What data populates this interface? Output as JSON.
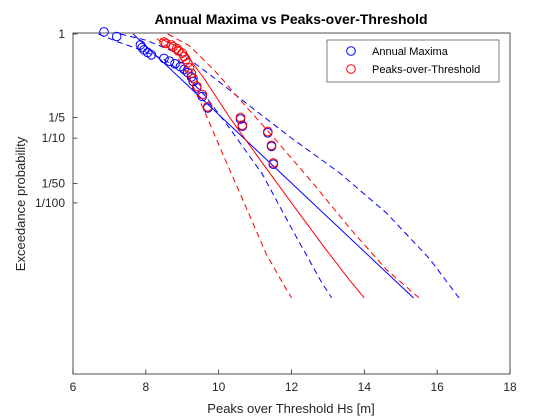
{
  "chart_data": {
    "type": "scatter",
    "title": "Annual Maxima vs Peaks-over-Threshold",
    "xlabel": "Peaks over Threshold Hs [m]",
    "ylabel": "Exceedance probability",
    "xlim": [
      6,
      18
    ],
    "y_scale": "reduced-gumbel",
    "y_ticks": [
      {
        "label": "1",
        "p": 0.99
      },
      {
        "label": "1/5",
        "p": 0.2
      },
      {
        "label": "1/10",
        "p": 0.1
      },
      {
        "label": "1/50",
        "p": 0.02
      },
      {
        "label": "1/100",
        "p": 0.01
      }
    ],
    "x_ticks": [
      {
        "label": "6",
        "v": 6
      },
      {
        "label": "8",
        "v": 8
      },
      {
        "label": "10",
        "v": 10
      },
      {
        "label": "12",
        "v": 12
      },
      {
        "label": "14",
        "v": 14
      },
      {
        "label": "16",
        "v": 16
      },
      {
        "label": "18",
        "v": 18
      }
    ],
    "grid": false,
    "legend_position": "top-right",
    "series": [
      {
        "name": "Annual Maxima",
        "color": "#0000ff",
        "points": [
          {
            "x": 6.85,
            "p": 0.993
          },
          {
            "x": 7.2,
            "p": 0.985
          },
          {
            "x": 7.85,
            "p": 0.955
          },
          {
            "x": 7.9,
            "p": 0.94
          },
          {
            "x": 7.95,
            "p": 0.925
          },
          {
            "x": 8.05,
            "p": 0.905
          },
          {
            "x": 8.15,
            "p": 0.885
          },
          {
            "x": 8.5,
            "p": 0.85
          },
          {
            "x": 8.65,
            "p": 0.82
          },
          {
            "x": 8.8,
            "p": 0.79
          },
          {
            "x": 8.95,
            "p": 0.755
          },
          {
            "x": 9.05,
            "p": 0.72
          },
          {
            "x": 9.15,
            "p": 0.68
          },
          {
            "x": 9.25,
            "p": 0.62
          },
          {
            "x": 9.3,
            "p": 0.56
          },
          {
            "x": 9.4,
            "p": 0.48
          },
          {
            "x": 9.55,
            "p": 0.38
          },
          {
            "x": 9.7,
            "p": 0.27
          },
          {
            "x": 10.6,
            "p": 0.19
          },
          {
            "x": 10.65,
            "p": 0.15
          },
          {
            "x": 11.35,
            "p": 0.12
          },
          {
            "x": 11.45,
            "p": 0.075
          },
          {
            "x": 11.5,
            "p": 0.04
          }
        ],
        "fit_line": {
          "style": "solid",
          "x": [
            7.65,
            15.35
          ],
          "p": [
            0.99,
            0.00032
          ]
        },
        "ci_lower": {
          "style": "dashed",
          "x": [
            6.7,
            7.2,
            7.8,
            8.5,
            9.0,
            9.6,
            10.3,
            11.2,
            12.0,
            12.8,
            13.1
          ],
          "p": [
            0.99,
            0.97,
            0.93,
            0.84,
            0.68,
            0.4,
            0.14,
            0.028,
            0.004,
            0.0006,
            0.00032
          ]
        },
        "ci_upper": {
          "style": "dashed",
          "x": [
            7.3,
            8.0,
            8.6,
            9.2,
            9.9,
            10.8,
            12.0,
            13.3,
            14.6,
            15.8,
            16.6
          ],
          "p": [
            0.99,
            0.975,
            0.93,
            0.84,
            0.6,
            0.3,
            0.1,
            0.03,
            0.007,
            0.0013,
            0.00032
          ]
        }
      },
      {
        "name": "Peaks-over-Threshold",
        "color": "#ff0000",
        "points": [
          {
            "x": 8.5,
            "p": 0.968
          },
          {
            "x": 8.55,
            "p": 0.962
          },
          {
            "x": 8.7,
            "p": 0.955
          },
          {
            "x": 8.75,
            "p": 0.945
          },
          {
            "x": 8.85,
            "p": 0.935
          },
          {
            "x": 8.9,
            "p": 0.92
          },
          {
            "x": 9.0,
            "p": 0.9
          },
          {
            "x": 9.05,
            "p": 0.87
          },
          {
            "x": 9.1,
            "p": 0.84
          },
          {
            "x": 9.15,
            "p": 0.8
          },
          {
            "x": 9.2,
            "p": 0.74
          },
          {
            "x": 9.25,
            "p": 0.67
          },
          {
            "x": 9.3,
            "p": 0.6
          },
          {
            "x": 9.4,
            "p": 0.5
          },
          {
            "x": 9.55,
            "p": 0.4
          },
          {
            "x": 9.7,
            "p": 0.28
          },
          {
            "x": 10.6,
            "p": 0.2
          },
          {
            "x": 10.65,
            "p": 0.155
          },
          {
            "x": 11.35,
            "p": 0.125
          },
          {
            "x": 11.45,
            "p": 0.078
          },
          {
            "x": 11.5,
            "p": 0.042
          }
        ],
        "fit_line": {
          "style": "solid",
          "x": [
            8.4,
            9.0,
            9.6,
            10.3,
            11.1,
            12.0,
            12.9,
            13.6,
            14.0
          ],
          "p": [
            0.98,
            0.93,
            0.6,
            0.2,
            0.05,
            0.01,
            0.002,
            0.0006,
            0.00032
          ]
        },
        "ci_lower": {
          "style": "dashed",
          "x": [
            8.3,
            8.8,
            9.2,
            9.6,
            10.1,
            10.7,
            11.3,
            11.8,
            12.0
          ],
          "p": [
            0.98,
            0.9,
            0.6,
            0.25,
            0.06,
            0.01,
            0.0016,
            0.0005,
            0.00032
          ]
        },
        "ci_upper": {
          "style": "dashed",
          "x": [
            8.6,
            9.2,
            9.9,
            10.7,
            11.6,
            12.6,
            13.6,
            14.6,
            15.5
          ],
          "p": [
            0.99,
            0.95,
            0.7,
            0.3,
            0.09,
            0.02,
            0.004,
            0.0009,
            0.00032
          ]
        }
      }
    ]
  }
}
